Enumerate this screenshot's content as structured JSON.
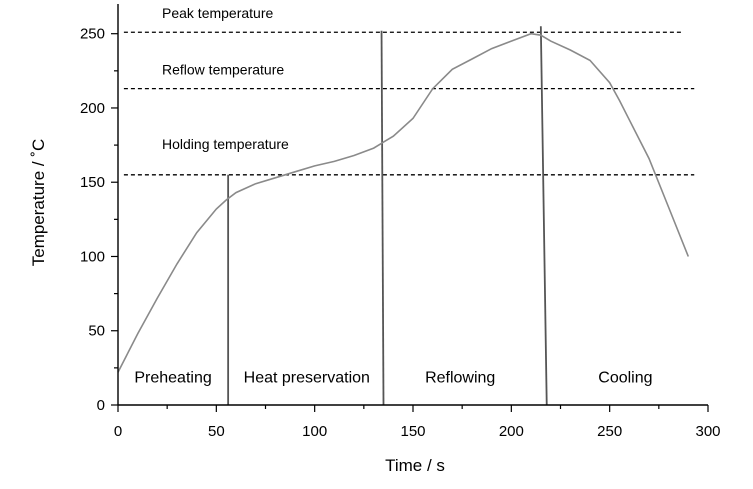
{
  "chart_data": {
    "type": "line",
    "title": "",
    "xlabel": "Time / s",
    "ylabel": "Temperature / ˚C",
    "xlim": [
      0,
      300
    ],
    "ylim": [
      0,
      270
    ],
    "grid": false,
    "x_ticks": [
      0,
      50,
      100,
      150,
      200,
      250,
      300
    ],
    "y_ticks": [
      0,
      50,
      100,
      150,
      200,
      250
    ],
    "series": [
      {
        "x": [
          0,
          10,
          20,
          30,
          40,
          50,
          55,
          60,
          70,
          80,
          90,
          100,
          110,
          120,
          130,
          135,
          140,
          150,
          160,
          170,
          180,
          190,
          200,
          210,
          215,
          220,
          230,
          240,
          250,
          255,
          260,
          270,
          280,
          290
        ],
        "y": [
          22,
          48,
          72,
          95,
          116,
          132,
          138,
          143,
          149,
          153,
          157,
          161,
          164,
          168,
          173,
          177,
          181,
          193,
          213,
          226,
          233,
          240,
          245,
          250,
          249,
          245,
          239,
          232,
          217,
          205,
          192,
          166,
          133,
          100
        ],
        "color": "#8a8a8a"
      }
    ],
    "reference_lines": [
      {
        "label": "Peak temperature",
        "y": 251,
        "x_start": 3,
        "x_end": 287
      },
      {
        "label": "Reflow temperature",
        "y": 213,
        "x_start": 3,
        "x_end": 293
      },
      {
        "label": "Holding temperature",
        "y": 155,
        "x_start": 3,
        "x_end": 293
      }
    ],
    "phase_boundaries": [
      {
        "x_bottom": 56,
        "x_top": 56,
        "y_top": 155
      },
      {
        "x_bottom": 135,
        "x_top": 134,
        "y_top": 252
      },
      {
        "x_bottom": 218,
        "x_top": 215,
        "y_top": 255
      }
    ],
    "phase_labels": [
      {
        "label": "Preheating",
        "x": 28,
        "y": 15
      },
      {
        "label": "Heat preservation",
        "x": 96,
        "y": 15
      },
      {
        "label": "Reflowing",
        "x": 174,
        "y": 15
      },
      {
        "label": "Cooling",
        "x": 258,
        "y": 15
      }
    ]
  }
}
